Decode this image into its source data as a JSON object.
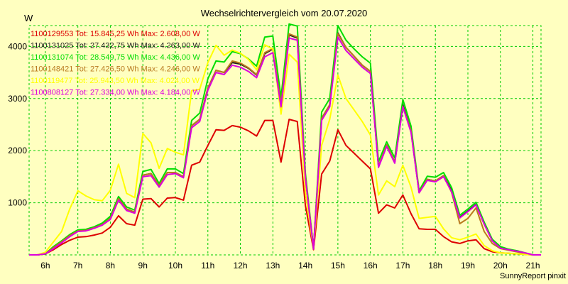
{
  "chart_data": {
    "type": "line",
    "title": "Wechselrichtervergleich vom 20.07.2020",
    "ylabel": "W",
    "xlabel": "",
    "credit": "SunnyReport pinxit",
    "grid": true,
    "ylim": [
      0,
      4400
    ],
    "xlim": [
      5.5,
      21.25
    ],
    "yticks": [
      1000,
      2000,
      3000,
      4000
    ],
    "ytick_labels": [
      "1000",
      "2000",
      "3000",
      "4000"
    ],
    "xticks": [
      6,
      7,
      8,
      9,
      10,
      11,
      12,
      13,
      14,
      15,
      16,
      17,
      18,
      19,
      20,
      21
    ],
    "xtick_labels": [
      "6h",
      "7h",
      "8h",
      "9h",
      "10h",
      "11h",
      "12h",
      "13h",
      "14h",
      "15h",
      "16h",
      "17h",
      "18h",
      "19h",
      "20h",
      "21h"
    ],
    "x": [
      5.5,
      5.75,
      6.0,
      6.25,
      6.5,
      6.75,
      7.0,
      7.25,
      7.5,
      7.75,
      8.0,
      8.25,
      8.5,
      8.75,
      9.0,
      9.25,
      9.5,
      9.75,
      10.0,
      10.25,
      10.5,
      10.75,
      11.0,
      11.25,
      11.5,
      11.75,
      12.0,
      12.25,
      12.5,
      12.75,
      13.0,
      13.25,
      13.5,
      13.75,
      14.0,
      14.25,
      14.5,
      14.75,
      15.0,
      15.25,
      15.5,
      15.75,
      16.0,
      16.25,
      16.5,
      16.75,
      17.0,
      17.25,
      17.5,
      17.75,
      18.0,
      18.25,
      18.5,
      18.75,
      19.0,
      19.25,
      19.5,
      19.75,
      20.0,
      20.25,
      20.5,
      20.75,
      21.0,
      21.25
    ],
    "series": [
      {
        "name": "1100129553 Tot: 15.845,25 Wh Max: 2.608,00 W",
        "color": "#dd0000",
        "values": [
          0,
          0,
          20,
          100,
          200,
          280,
          340,
          350,
          380,
          420,
          530,
          750,
          600,
          570,
          1070,
          1080,
          920,
          1090,
          1100,
          1050,
          1720,
          1780,
          2100,
          2400,
          2390,
          2480,
          2450,
          2380,
          2280,
          2580,
          2580,
          1780,
          2600,
          2560,
          950,
          100,
          1550,
          1800,
          2400,
          2100,
          1950,
          1800,
          1650,
          800,
          960,
          900,
          1150,
          790,
          500,
          490,
          490,
          350,
          250,
          220,
          270,
          290,
          120,
          60,
          40,
          30,
          20,
          10,
          0,
          0
        ]
      },
      {
        "name": "1100131025 Tot: 27.432,75 Wh Max: 4.263,00 W",
        "color": "#202020",
        "values": [
          0,
          0,
          20,
          140,
          250,
          370,
          460,
          470,
          520,
          580,
          700,
          1080,
          880,
          820,
          1530,
          1560,
          1330,
          1580,
          1580,
          1500,
          2480,
          2600,
          3200,
          3540,
          3500,
          3690,
          3660,
          3580,
          3450,
          3860,
          3950,
          2880,
          4220,
          4160,
          1500,
          120,
          2620,
          2880,
          4260,
          3980,
          3810,
          3640,
          3520,
          1700,
          2110,
          1780,
          2880,
          2380,
          1200,
          1450,
          1420,
          1520,
          1230,
          720,
          840,
          970,
          600,
          280,
          140,
          100,
          80,
          40,
          0,
          0
        ]
      },
      {
        "name": "1100131074 Tot: 28.549,75 Wh Max: 4.436,00 W",
        "color": "#00dd00",
        "values": [
          0,
          0,
          20,
          160,
          270,
          390,
          480,
          490,
          540,
          610,
          740,
          1120,
          920,
          860,
          1600,
          1640,
          1370,
          1650,
          1650,
          1560,
          2580,
          2720,
          3380,
          3720,
          3700,
          3900,
          3860,
          3760,
          3620,
          4180,
          4200,
          3020,
          4430,
          4390,
          1570,
          130,
          2740,
          3000,
          4400,
          4120,
          3950,
          3800,
          3680,
          1790,
          2170,
          1860,
          2980,
          2470,
          1230,
          1510,
          1490,
          1580,
          1290,
          760,
          880,
          1010,
          630,
          300,
          160,
          110,
          80,
          40,
          0,
          0
        ]
      },
      {
        "name": "1100148421 Tot: 27.426,50 Wh Max: 4.246,00 W",
        "color": "#b97a1e",
        "values": [
          0,
          0,
          20,
          140,
          250,
          370,
          460,
          470,
          520,
          580,
          700,
          1080,
          880,
          820,
          1530,
          1560,
          1330,
          1580,
          1580,
          1500,
          2480,
          2600,
          3200,
          3540,
          3500,
          3720,
          3680,
          3590,
          3460,
          3880,
          3960,
          2890,
          4240,
          4180,
          1500,
          120,
          2620,
          2880,
          4240,
          3980,
          3810,
          3640,
          3520,
          1700,
          2110,
          1780,
          2850,
          2380,
          1200,
          1450,
          1420,
          1520,
          1200,
          600,
          700,
          900,
          450,
          220,
          120,
          90,
          60,
          30,
          0,
          0
        ]
      },
      {
        "name": "1100119477 Tot: 25.943,50 Wh Max: 4.024,00 W",
        "color": "#ffff00",
        "values": [
          0,
          0,
          50,
          250,
          450,
          880,
          1230,
          1130,
          1060,
          1040,
          1240,
          1740,
          1180,
          1100,
          2330,
          2150,
          1660,
          2040,
          1970,
          1920,
          3150,
          3180,
          3690,
          4020,
          3830,
          3930,
          3870,
          3750,
          3550,
          4030,
          3950,
          2700,
          3850,
          3700,
          1200,
          120,
          2100,
          2600,
          3450,
          3000,
          2780,
          2560,
          2300,
          1150,
          1420,
          1310,
          1720,
          1300,
          700,
          720,
          740,
          500,
          330,
          290,
          340,
          400,
          180,
          80,
          40,
          30,
          20,
          10,
          0,
          0
        ]
      },
      {
        "name": "1100808127 Tot: 27.334,00 Wh Max: 4.184,00 W",
        "color": "#dd00dd",
        "values": [
          0,
          0,
          20,
          120,
          230,
          350,
          450,
          460,
          510,
          570,
          680,
          1050,
          850,
          800,
          1500,
          1520,
          1300,
          1540,
          1560,
          1480,
          2440,
          2560,
          3160,
          3500,
          3460,
          3640,
          3600,
          3520,
          3400,
          3800,
          3880,
          2840,
          4160,
          4120,
          1480,
          110,
          2580,
          2840,
          4180,
          3920,
          3760,
          3600,
          3480,
          1680,
          2080,
          1760,
          2840,
          2350,
          1190,
          1430,
          1400,
          1500,
          1210,
          710,
          830,
          960,
          590,
          270,
          130,
          100,
          70,
          40,
          0,
          0
        ]
      }
    ]
  }
}
